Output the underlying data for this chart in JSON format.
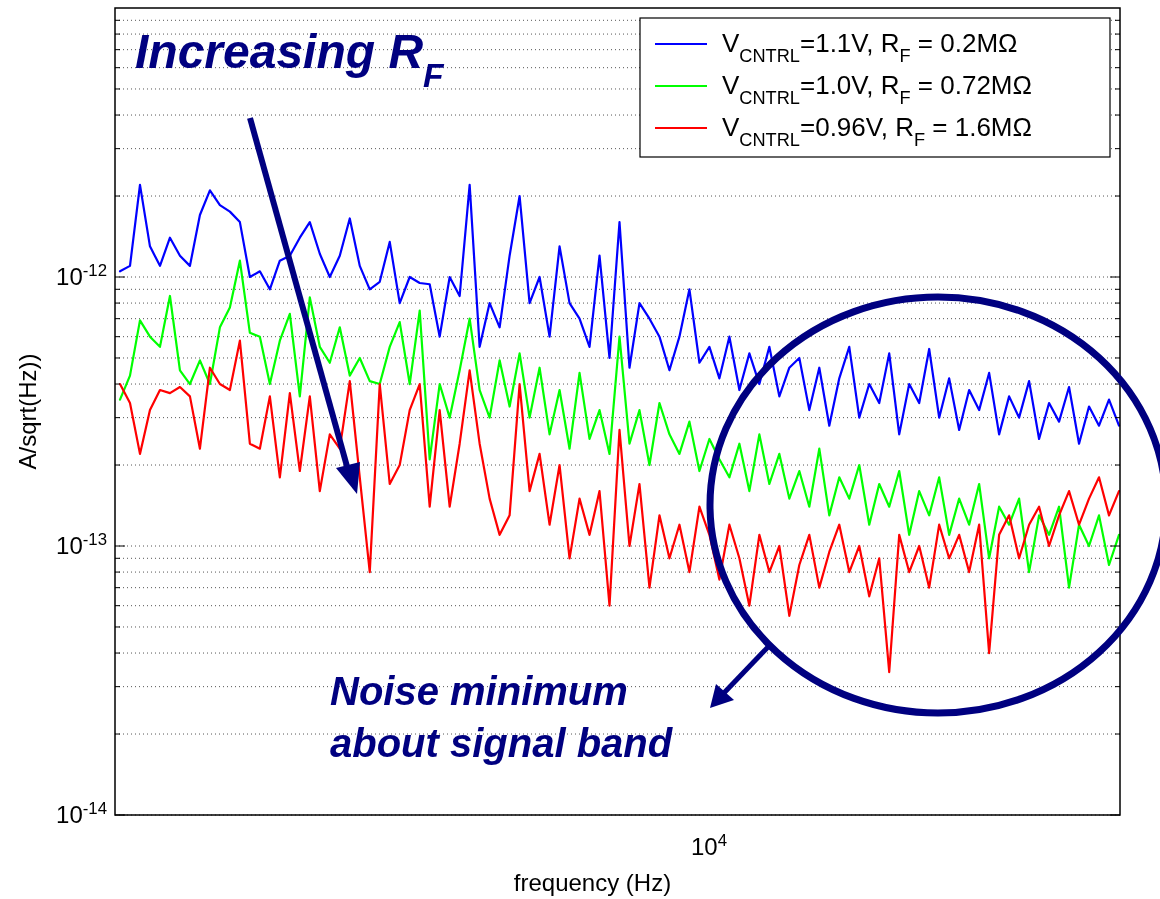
{
  "chart_data": {
    "type": "line",
    "xlabel": "frequency (Hz)",
    "ylabel": "A/sqrt(Hz))",
    "log": "y",
    "grid": "y",
    "legend": "top right",
    "marker": "none",
    "line_style": "solid",
    "ylim": [
      1e-14,
      1e-11
    ],
    "yticks": [
      {
        "value": 1e-14,
        "label": "10$^{-14}$"
      },
      {
        "value": 2e-14,
        "label": null
      },
      {
        "value": 3e-14,
        "label": null
      },
      {
        "value": 4e-14,
        "label": null
      },
      {
        "value": 5e-14,
        "label": null
      },
      {
        "value": 6e-14,
        "label": null
      },
      {
        "value": 7e-14,
        "label": null
      },
      {
        "value": 8e-14,
        "label": null
      },
      {
        "value": 9e-14,
        "label": null
      },
      {
        "value": 1e-13,
        "label": "10$^{-13}$"
      },
      {
        "value": 2e-13,
        "label": null
      },
      {
        "value": 3e-13,
        "label": null
      },
      {
        "value": 4e-13,
        "label": null
      },
      {
        "value": 5e-13,
        "label": null
      },
      {
        "value": 6e-13,
        "label": null
      },
      {
        "value": 7e-13,
        "label": null
      },
      {
        "value": 8e-13,
        "label": null
      },
      {
        "value": 9e-13,
        "label": null
      },
      {
        "value": 1e-12,
        "label": "10$^{-12}$"
      },
      {
        "value": 2e-12,
        "label": null
      },
      {
        "value": 3e-12,
        "label": null
      },
      {
        "value": 4e-12,
        "label": null
      },
      {
        "value": 5e-12,
        "label": null
      },
      {
        "value": 6e-12,
        "label": null
      },
      {
        "value": 7e-12,
        "label": null
      },
      {
        "value": 8e-12,
        "label": null
      },
      {
        "value": 9e-12,
        "label": null
      }
    ],
    "annotations": [
      "Increasing R$_{F}$",
      "Noise minimum\nabout signal band",
      "10$^{4}$"
    ],
    "categories": [
      null,
      null,
      null,
      null,
      null,
      null,
      null,
      null,
      null,
      null,
      null,
      null,
      null,
      null,
      null,
      null,
      null,
      null,
      null,
      null,
      null,
      null,
      null,
      null,
      null,
      null,
      null,
      null,
      null,
      null,
      null,
      null,
      null,
      null,
      null,
      null,
      null,
      null,
      null,
      null,
      null,
      null,
      null,
      null,
      null,
      null,
      null,
      null,
      null,
      null,
      null,
      null,
      null,
      null,
      null,
      null,
      null,
      null,
      null,
      null,
      null,
      null,
      null,
      null,
      null,
      null,
      null,
      null,
      null,
      null,
      null,
      null,
      null,
      null,
      null,
      null,
      null,
      null,
      null,
      null,
      null,
      null,
      null,
      null,
      null,
      null,
      null,
      null,
      null,
      null,
      null,
      null,
      null,
      null,
      null,
      null,
      null,
      null,
      null,
      null,
      null
    ],
    "series": [
      {
        "name": "V$_{CNTRL}$=1.1V, R$_{F}$ = 0.2MΩ",
        "color": "#0000ff",
        "values": [
          1.05e-12,
          1.1e-12,
          2.2e-12,
          1.3e-12,
          1.1e-12,
          1.4e-12,
          1.2e-12,
          1.1e-12,
          1.7e-12,
          2.1e-12,
          1.85e-12,
          1.75e-12,
          1.6e-12,
          1e-12,
          1.05e-12,
          9e-13,
          1.15e-12,
          1.2e-12,
          1.4e-12,
          1.6e-12,
          1.22e-12,
          1e-12,
          1.2e-12,
          1.65e-12,
          1.1e-12,
          9e-13,
          9.6e-13,
          1.35e-12,
          8e-13,
          1e-12,
          9.5e-13,
          9.4e-13,
          6e-13,
          1e-12,
          8.5e-13,
          2.2e-12,
          5.5e-13,
          8e-13,
          6.5e-13,
          1.2e-12,
          2e-12,
          8e-13,
          1e-12,
          6e-13,
          1.3e-12,
          8e-13,
          7e-13,
          5.5e-13,
          1.2e-12,
          5e-13,
          1.6e-12,
          4.6e-13,
          8e-13,
          7e-13,
          6e-13,
          4.5e-13,
          6e-13,
          9e-13,
          4.8e-13,
          5.5e-13,
          4.2e-13,
          6e-13,
          3.8e-13,
          5.2e-13,
          4e-13,
          5.5e-13,
          3.6e-13,
          4.6e-13,
          5e-13,
          3.2e-13,
          4.6e-13,
          2.8e-13,
          4.2e-13,
          5.5e-13,
          3e-13,
          4e-13,
          3.4e-13,
          5.2e-13,
          2.6e-13,
          4e-13,
          3.4e-13,
          5.4e-13,
          3e-13,
          4.2e-13,
          2.7e-13,
          3.8e-13,
          3.2e-13,
          4.4e-13,
          2.6e-13,
          3.6e-13,
          3e-13,
          4.1e-13,
          2.5e-13,
          3.4e-13,
          2.9e-13,
          3.9e-13,
          2.4e-13,
          3.3e-13,
          2.8e-13,
          3.5e-13,
          2.8e-13
        ]
      },
      {
        "name": "V$_{CNTRL}$=1.0V, R$_{F}$ = 0.72MΩ",
        "color": "#00ff00",
        "values": [
          3.5e-13,
          4.3e-13,
          6.9e-13,
          6e-13,
          5.5e-13,
          8.5e-13,
          4.5e-13,
          4e-13,
          4.9e-13,
          4e-13,
          6.5e-13,
          7.7e-13,
          1.15e-12,
          6.2e-13,
          6e-13,
          4e-13,
          5.8e-13,
          7.3e-13,
          3.6e-13,
          8.4e-13,
          5.5e-13,
          4.8e-13,
          6.5e-13,
          4.3e-13,
          5e-13,
          4.1e-13,
          4e-13,
          5.5e-13,
          6.8e-13,
          4e-13,
          7.5e-13,
          2.1e-13,
          4e-13,
          3e-13,
          4.5e-13,
          7e-13,
          3.8e-13,
          3e-13,
          4.9e-13,
          3.3e-13,
          5.2e-13,
          3e-13,
          4.6e-13,
          2.6e-13,
          3.8e-13,
          2.3e-13,
          4.4e-13,
          2.5e-13,
          3.2e-13,
          2.2e-13,
          6e-13,
          2.4e-13,
          3.2e-13,
          2e-13,
          3.4e-13,
          2.6e-13,
          2.2e-13,
          2.9e-13,
          1.9e-13,
          2.5e-13,
          2.1e-13,
          1.8e-13,
          2.4e-13,
          1.6e-13,
          2.6e-13,
          1.7e-13,
          2.2e-13,
          1.5e-13,
          1.9e-13,
          1.4e-13,
          2.3e-13,
          1.3e-13,
          1.8e-13,
          1.5e-13,
          2e-13,
          1.2e-13,
          1.7e-13,
          1.4e-13,
          1.9e-13,
          1.1e-13,
          1.6e-13,
          1.3e-13,
          1.8e-13,
          1.1e-13,
          1.5e-13,
          1.2e-13,
          1.7e-13,
          9e-14,
          1.4e-13,
          1.2e-13,
          1.5e-13,
          8e-14,
          1.3e-13,
          1.1e-13,
          1.4e-13,
          7e-14,
          1.2e-13,
          1e-13,
          1.3e-13,
          8.5e-14,
          1.1e-13
        ]
      },
      {
        "name": "V$_{CNTRL}$=0.96V, R$_{F}$ = 1.6MΩ",
        "color": "#ff0000",
        "values": [
          4e-13,
          3.4e-13,
          2.2e-13,
          3.2e-13,
          3.8e-13,
          3.7e-13,
          3.9e-13,
          3.6e-13,
          2.3e-13,
          4.6e-13,
          4e-13,
          3.8e-13,
          5.8e-13,
          2.4e-13,
          2.3e-13,
          3.6e-13,
          1.8e-13,
          3.7e-13,
          1.9e-13,
          3.6e-13,
          1.6e-13,
          2.6e-13,
          2.3e-13,
          4.1e-13,
          1.8e-13,
          8e-14,
          4e-13,
          1.7e-13,
          2e-13,
          3.2e-13,
          4e-13,
          1.4e-13,
          3.2e-13,
          1.4e-13,
          2.4e-13,
          4.5e-13,
          2.4e-13,
          1.5e-13,
          1.1e-13,
          1.3e-13,
          4e-13,
          1.6e-13,
          2.2e-13,
          1.2e-13,
          2e-13,
          9e-14,
          1.5e-13,
          1.1e-13,
          1.6e-13,
          6e-14,
          2.7e-13,
          1e-13,
          1.7e-13,
          7e-14,
          1.3e-13,
          9e-14,
          1.2e-13,
          8e-14,
          1.4e-13,
          1.1e-13,
          7.5e-14,
          1.2e-13,
          9e-14,
          6e-14,
          1.1e-13,
          8e-14,
          1e-13,
          5.5e-14,
          8.5e-14,
          1.1e-13,
          7e-14,
          9.5e-14,
          1.2e-13,
          8e-14,
          1e-13,
          6.5e-14,
          9e-14,
          3.4e-14,
          1.1e-13,
          8e-14,
          1e-13,
          7e-14,
          1.2e-13,
          9e-14,
          1.1e-13,
          8e-14,
          1.2e-13,
          4e-14,
          1.1e-13,
          1.3e-13,
          9e-14,
          1.2e-13,
          1.4e-13,
          1e-13,
          1.3e-13,
          1.6e-13,
          1.2e-13,
          1.5e-13,
          1.8e-13,
          1.3e-13,
          1.6e-13
        ]
      }
    ]
  }
}
